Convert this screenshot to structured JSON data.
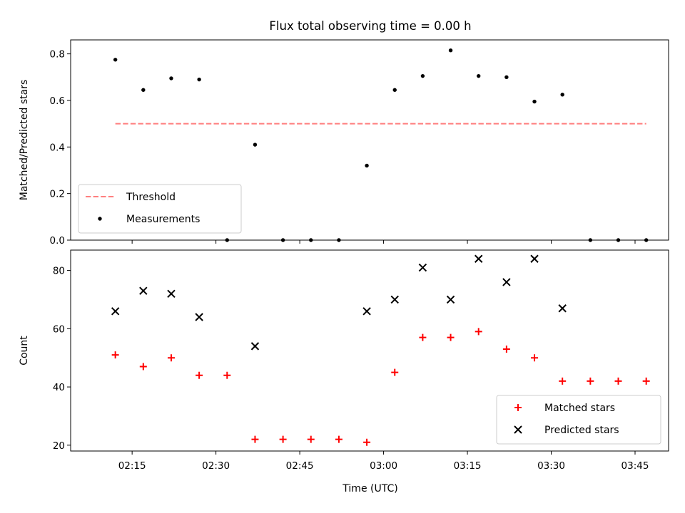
{
  "chart_data": {
    "type": "scatter",
    "title": "Flux total observing time = 0.00 h",
    "xlabel": "Time (UTC)",
    "xlim": [
      "02:04",
      "03:51"
    ],
    "x_ticks": [
      "02:15",
      "02:30",
      "02:45",
      "03:00",
      "03:15",
      "03:30",
      "03:45"
    ],
    "x": [
      "02:12",
      "02:17",
      "02:22",
      "02:27",
      "02:32",
      "02:37",
      "02:42",
      "02:47",
      "02:52",
      "02:57",
      "03:02",
      "03:07",
      "03:12",
      "03:17",
      "03:22",
      "03:27",
      "03:32",
      "03:37",
      "03:42",
      "03:47"
    ],
    "panels": [
      {
        "id": "ratio",
        "ylabel": "Matched/Predicted stars",
        "ylim": [
          0,
          0.86
        ],
        "y_ticks": [
          "0.0",
          "0.2",
          "0.4",
          "0.6",
          "0.8"
        ],
        "legend_position": "lower left",
        "series": [
          {
            "name": "Threshold",
            "kind": "line",
            "style": "dashed",
            "color": "#ff7f7f",
            "x_range": [
              "02:12",
              "03:47"
            ],
            "values": [
              0.5,
              0.5
            ]
          },
          {
            "name": "Measurements",
            "kind": "dot",
            "color": "#000000",
            "values": [
              0.775,
              0.645,
              0.695,
              0.69,
              0.0,
              0.41,
              0.0,
              0.0,
              0.0,
              0.32,
              0.645,
              0.705,
              0.815,
              0.705,
              0.7,
              0.595,
              0.625,
              0.0,
              0.0,
              0.0
            ]
          }
        ]
      },
      {
        "id": "count",
        "ylabel": "Count",
        "ylim": [
          18,
          87
        ],
        "y_ticks": [
          "20",
          "40",
          "60",
          "80"
        ],
        "legend_position": "lower right",
        "series": [
          {
            "name": "Matched stars",
            "kind": "plus",
            "color": "#ff0000",
            "values": [
              51,
              47,
              50,
              44,
              44,
              22,
              22,
              22,
              22,
              21,
              45,
              57,
              57,
              59,
              53,
              50,
              42,
              42,
              42,
              42
            ]
          },
          {
            "name": "Predicted stars",
            "kind": "cross",
            "color": "#000000",
            "values": [
              66,
              73,
              72,
              64,
              null,
              54,
              null,
              null,
              null,
              66,
              70,
              81,
              70,
              84,
              76,
              84,
              67,
              null,
              null,
              null
            ]
          }
        ]
      }
    ]
  }
}
